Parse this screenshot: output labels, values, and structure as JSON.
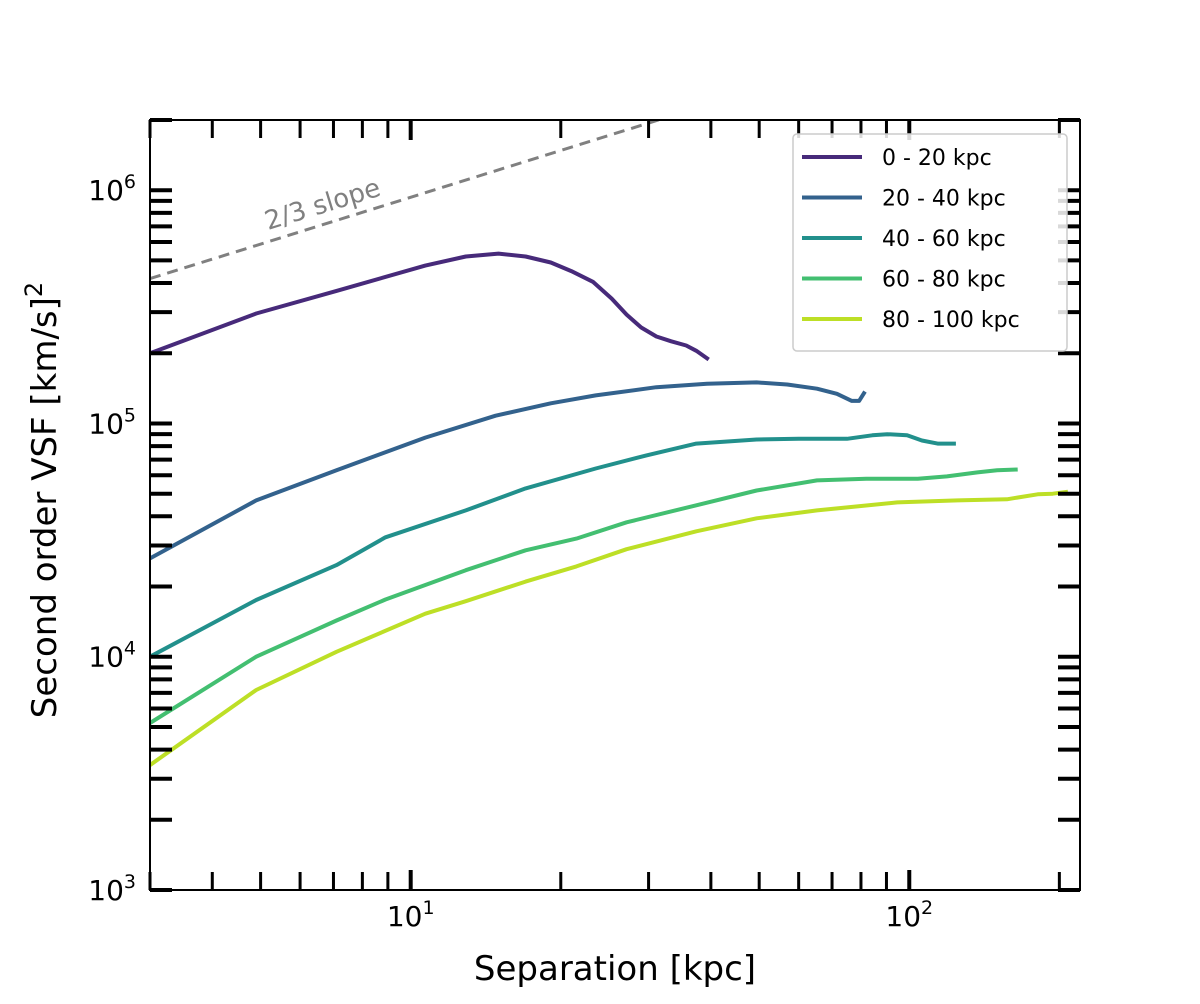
{
  "chart_data": {
    "type": "line",
    "title": "",
    "xlabel": "Separation [kpc]",
    "ylabel": "Second order VSF [km/s]",
    "ylabel_superscript": "2",
    "xscale": "log",
    "yscale": "log",
    "xlim": [
      3,
      220
    ],
    "ylim": [
      1000,
      2000000
    ],
    "grid": false,
    "legend_position": "top-right",
    "x_ticks": [
      {
        "base": "10",
        "exp": "1",
        "value": 10
      },
      {
        "base": "10",
        "exp": "2",
        "value": 100
      }
    ],
    "y_ticks": [
      {
        "base": "10",
        "exp": "3",
        "value": 1000
      },
      {
        "base": "10",
        "exp": "4",
        "value": 10000
      },
      {
        "base": "10",
        "exp": "5",
        "value": 100000
      },
      {
        "base": "10",
        "exp": "6",
        "value": 1000000
      }
    ],
    "series": [
      {
        "name": "0 - 20 kpc",
        "color": "#472a7a",
        "x": [
          3.0,
          4.9,
          7.1,
          10.7,
          12.9,
          15.0,
          17.0,
          19.1,
          21.0,
          23.2,
          25.3,
          27.1,
          29.0,
          31.1,
          33.3,
          35.7,
          37.4,
          39.6
        ],
        "y": [
          200000,
          296000,
          370000,
          475000,
          520000,
          535000,
          520000,
          490000,
          450000,
          405000,
          343000,
          293000,
          258000,
          236000,
          225000,
          216000,
          205000,
          188000
        ]
      },
      {
        "name": "20 - 40 kpc",
        "color": "#33628d",
        "x": [
          3.0,
          4.9,
          7.1,
          10.7,
          14.8,
          19.1,
          23.5,
          31.1,
          39.3,
          49.4,
          56.9,
          65.3,
          71.6,
          76.7,
          79.3,
          81.5
        ],
        "y": [
          26400,
          46800,
          63000,
          87000,
          108000,
          122000,
          132000,
          143000,
          148000,
          150000,
          147000,
          141000,
          134000,
          125000,
          125000,
          137000
        ]
      },
      {
        "name": "40 - 60 kpc",
        "color": "#22908c",
        "x": [
          3.0,
          4.9,
          7.1,
          8.9,
          12.9,
          17.0,
          23.5,
          29.7,
          37.4,
          49.4,
          60.0,
          75.0,
          84.3,
          90.3,
          99.0,
          106,
          114,
          124
        ],
        "y": [
          10000,
          17500,
          24700,
          32500,
          42400,
          52700,
          64100,
          73000,
          82000,
          85400,
          86000,
          86000,
          89000,
          90000,
          89000,
          84500,
          82000,
          82000
        ]
      },
      {
        "name": "60 - 80 kpc",
        "color": "#43bf71",
        "x": [
          3.0,
          4.9,
          7.1,
          8.9,
          12.9,
          17.0,
          21.5,
          27.1,
          37.4,
          49.4,
          65.3,
          82.0,
          104,
          119,
          137,
          150,
          165
        ],
        "y": [
          5200,
          10000,
          14300,
          17600,
          23500,
          28600,
          32100,
          37700,
          44600,
          51600,
          57000,
          58000,
          58000,
          59300,
          61700,
          63000,
          63500
        ]
      },
      {
        "name": "80 - 100 kpc",
        "color": "#bddf26",
        "x": [
          3.0,
          4.9,
          7.1,
          10.7,
          12.9,
          17.0,
          21.5,
          27.1,
          37.4,
          49.4,
          65.3,
          94.6,
          125,
          157,
          181,
          194,
          208
        ],
        "y": [
          3430,
          7200,
          10500,
          15300,
          17300,
          21000,
          24400,
          28900,
          34500,
          39200,
          42400,
          45900,
          46800,
          47300,
          49700,
          50000,
          51000
        ]
      }
    ],
    "reference_line": {
      "label": "2/3 slope",
      "color": "#808080",
      "style": "dashed",
      "x": [
        3,
        220
      ],
      "y0": 418000,
      "slope": 0.6667
    }
  }
}
